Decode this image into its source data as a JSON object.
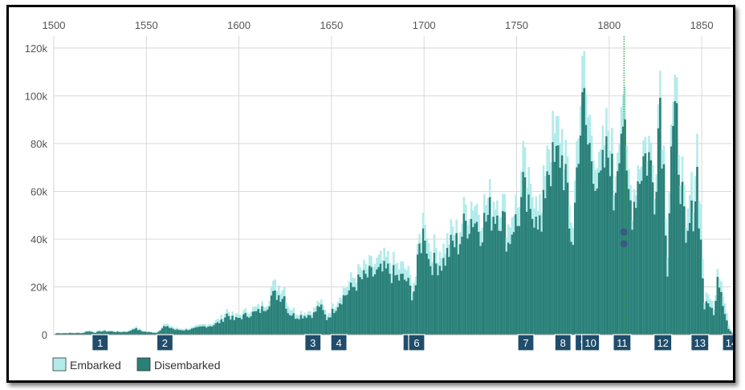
{
  "chart_data": {
    "type": "bar",
    "x_axis": {
      "min": 1500,
      "max": 1866,
      "ticks": [
        1500,
        1550,
        1600,
        1650,
        1700,
        1750,
        1800,
        1850
      ]
    },
    "y_axis": {
      "min": 0,
      "max": 125000,
      "ticks": [
        0,
        20000,
        40000,
        60000,
        80000,
        100000,
        120000
      ],
      "tick_labels": [
        "0",
        "20k",
        "40k",
        "60k",
        "80k",
        "100k",
        "120k"
      ]
    },
    "grid": true,
    "legend_position": "bottom-left",
    "series": [
      {
        "name": "Embarked",
        "color": "#b3ebeb"
      },
      {
        "name": "Disembarked",
        "color": "#2a8079"
      }
    ],
    "anchor_points": [
      [
        1501,
        800,
        600
      ],
      [
        1515,
        900,
        700
      ],
      [
        1518,
        2000,
        1500
      ],
      [
        1522,
        1200,
        900
      ],
      [
        1525,
        2000,
        1500
      ],
      [
        1530,
        1800,
        1400
      ],
      [
        1535,
        1500,
        1100
      ],
      [
        1540,
        1800,
        1300
      ],
      [
        1543,
        3600,
        2800
      ],
      [
        1547,
        2000,
        1500
      ],
      [
        1550,
        1500,
        1100
      ],
      [
        1555,
        1000,
        800
      ],
      [
        1559,
        4500,
        3500
      ],
      [
        1563,
        3800,
        3000
      ],
      [
        1565,
        2800,
        2100
      ],
      [
        1570,
        2600,
        2000
      ],
      [
        1575,
        3200,
        2500
      ],
      [
        1580,
        4500,
        3500
      ],
      [
        1585,
        5000,
        4000
      ],
      [
        1590,
        7500,
        5800
      ],
      [
        1593,
        11000,
        9000
      ],
      [
        1597,
        8000,
        6500
      ],
      [
        1600,
        9000,
        7500
      ],
      [
        1605,
        11000,
        9000
      ],
      [
        1610,
        12000,
        10000
      ],
      [
        1615,
        15000,
        13000
      ],
      [
        1617,
        21000,
        17000
      ],
      [
        1620,
        22000,
        17500
      ],
      [
        1624,
        21000,
        17000
      ],
      [
        1626,
        13000,
        10000
      ],
      [
        1630,
        10000,
        8000
      ],
      [
        1635,
        10000,
        8500
      ],
      [
        1640,
        11000,
        9000
      ],
      [
        1643,
        15000,
        13000
      ],
      [
        1647,
        9000,
        7000
      ],
      [
        1650,
        12000,
        10000
      ],
      [
        1655,
        19000,
        16000
      ],
      [
        1660,
        24000,
        20000
      ],
      [
        1665,
        28000,
        24000
      ],
      [
        1670,
        30000,
        26000
      ],
      [
        1675,
        32000,
        27000
      ],
      [
        1680,
        33000,
        28000
      ],
      [
        1685,
        30000,
        25000
      ],
      [
        1690,
        29000,
        24000
      ],
      [
        1693,
        22000,
        18000
      ],
      [
        1695,
        26000,
        22000
      ],
      [
        1697,
        42000,
        38000
      ],
      [
        1700,
        55000,
        47000
      ],
      [
        1702,
        40000,
        33000
      ],
      [
        1705,
        38000,
        31000
      ],
      [
        1710,
        38000,
        32000
      ],
      [
        1715,
        46000,
        40000
      ],
      [
        1718,
        45000,
        40000
      ],
      [
        1722,
        56000,
        49000
      ],
      [
        1726,
        60000,
        52000
      ],
      [
        1730,
        55000,
        47000
      ],
      [
        1735,
        60000,
        53000
      ],
      [
        1740,
        62000,
        55000
      ],
      [
        1743,
        55000,
        48000
      ],
      [
        1745,
        48000,
        40000
      ],
      [
        1748,
        58000,
        50000
      ],
      [
        1750,
        56000,
        48000
      ],
      [
        1753,
        75000,
        63000
      ],
      [
        1757,
        60000,
        50000
      ],
      [
        1760,
        68000,
        58000
      ],
      [
        1763,
        52000,
        44000
      ],
      [
        1766,
        88000,
        76000
      ],
      [
        1770,
        85000,
        73000
      ],
      [
        1773,
        92000,
        80000
      ],
      [
        1776,
        80000,
        70000
      ],
      [
        1778,
        55000,
        45000
      ],
      [
        1780,
        50000,
        42000
      ],
      [
        1783,
        100000,
        87000
      ],
      [
        1786,
        115000,
        100000
      ],
      [
        1788,
        95000,
        83000
      ],
      [
        1791,
        90000,
        78000
      ],
      [
        1794,
        70000,
        62000
      ],
      [
        1797,
        85000,
        75000
      ],
      [
        1800,
        95000,
        82000
      ],
      [
        1802,
        65000,
        58000
      ],
      [
        1805,
        100000,
        90000
      ],
      [
        1807,
        112000,
        97000
      ],
      [
        1809,
        75000,
        65000
      ],
      [
        1812,
        60000,
        55000
      ],
      [
        1815,
        75000,
        68000
      ],
      [
        1818,
        85000,
        78000
      ],
      [
        1821,
        85000,
        78000
      ],
      [
        1824,
        70000,
        62000
      ],
      [
        1827,
        118000,
        106000
      ],
      [
        1829,
        80000,
        72000
      ],
      [
        1831,
        40000,
        30000
      ],
      [
        1833,
        95000,
        85000
      ],
      [
        1836,
        100000,
        90000
      ],
      [
        1839,
        70000,
        60000
      ],
      [
        1841,
        42000,
        36000
      ],
      [
        1843,
        60000,
        48000
      ],
      [
        1845,
        65000,
        55000
      ],
      [
        1847,
        85000,
        71000
      ],
      [
        1849,
        55000,
        40000
      ],
      [
        1851,
        15000,
        12000
      ],
      [
        1854,
        18000,
        14000
      ],
      [
        1856,
        10000,
        8000
      ],
      [
        1858,
        32000,
        28000
      ],
      [
        1860,
        25000,
        20000
      ],
      [
        1862,
        15000,
        10000
      ],
      [
        1864,
        4000,
        2500
      ],
      [
        1866,
        1000,
        500
      ]
    ],
    "period_markers": [
      {
        "label": "1",
        "year": 1525
      },
      {
        "label": "2",
        "year": 1560
      },
      {
        "label": "3",
        "year": 1640
      },
      {
        "label": "4",
        "year": 1654
      },
      {
        "label": "5",
        "year": 1693
      },
      {
        "label": "6",
        "year": 1696
      },
      {
        "label": "7",
        "year": 1755
      },
      {
        "label": "8",
        "year": 1775
      },
      {
        "label": "9",
        "year": 1786
      },
      {
        "label": "10",
        "year": 1790
      },
      {
        "label": "11",
        "year": 1807
      },
      {
        "label": "12",
        "year": 1829
      },
      {
        "label": "13",
        "year": 1849
      },
      {
        "label": "14",
        "year": 1866
      }
    ],
    "hover": {
      "year": 1808,
      "embarked": 43000,
      "disembarked": 38000,
      "line_color": "#3a9a4f",
      "dot_color": "#3a5a80"
    }
  },
  "colors": {
    "embarked": "#b3ebeb",
    "disembarked": "#2a8079",
    "marker": "#1f4d6b",
    "grid": "#d8d8d8"
  }
}
